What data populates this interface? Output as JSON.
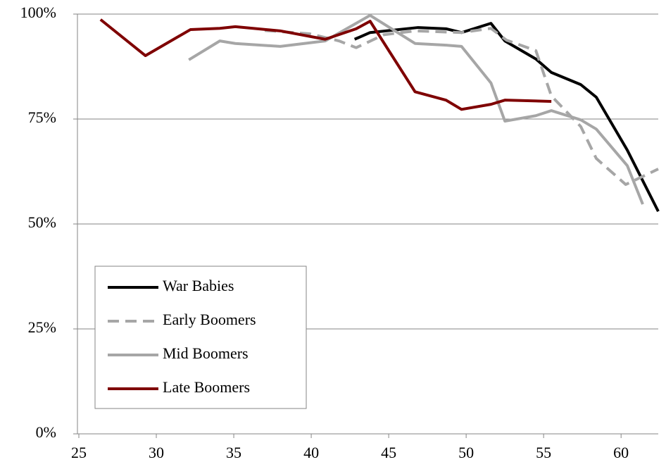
{
  "chart_data": {
    "type": "line",
    "xlim": [
      25,
      62.4
    ],
    "xticks": [
      25,
      30,
      35,
      40,
      45,
      50,
      55,
      60
    ],
    "ylim": [
      0,
      100
    ],
    "yticks": [
      {
        "value": 0,
        "label": "0%"
      },
      {
        "value": 25,
        "label": "25%"
      },
      {
        "value": 50,
        "label": "50%"
      },
      {
        "value": 75,
        "label": "75%"
      },
      {
        "value": 100,
        "label": "100%"
      }
    ],
    "grid": true,
    "legend": "lower left",
    "series": [
      {
        "name": "War Babies",
        "color": "#000000",
        "style": "solid",
        "x": [
          42.8,
          43.8,
          45.6,
          46.9,
          48.7,
          49.7,
          51.6,
          52.5,
          54.5,
          55.5,
          57.4,
          58.4,
          60.4,
          62.4
        ],
        "values": [
          94.0,
          95.6,
          96.3,
          96.8,
          96.5,
          95.6,
          97.8,
          93.6,
          89.3,
          86.1,
          83.2,
          80.2,
          67.6,
          53.0
        ]
      },
      {
        "name": "Early Boomers",
        "color": "#a6a6a6",
        "style": "dashed",
        "x": [
          37.0,
          39.9,
          41.8,
          42.9,
          44.7,
          46.7,
          49.7,
          51.6,
          52.6,
          54.5,
          55.5,
          57.4,
          58.4,
          60.3,
          62.4
        ],
        "values": [
          96.1,
          95.3,
          93.6,
          92.0,
          95.1,
          96.0,
          95.6,
          96.6,
          93.8,
          91.3,
          80.5,
          73.2,
          65.6,
          59.4,
          63.1
        ]
      },
      {
        "name": "Mid Boomers",
        "color": "#a6a6a6",
        "style": "solid",
        "x": [
          32.1,
          34.1,
          35.1,
          38.0,
          40.9,
          43.8,
          46.7,
          48.7,
          49.7,
          51.6,
          52.5,
          54.5,
          55.5,
          57.4,
          58.4,
          60.4,
          61.4
        ],
        "values": [
          89.1,
          93.6,
          93.0,
          92.3,
          93.6,
          99.7,
          93.0,
          92.6,
          92.3,
          83.6,
          74.5,
          75.8,
          77.0,
          74.8,
          72.6,
          63.9,
          54.7
        ]
      },
      {
        "name": "Late Boomers",
        "color": "#7f0000",
        "style": "solid",
        "x": [
          26.4,
          29.3,
          32.2,
          34.1,
          35.1,
          38.0,
          40.9,
          42.9,
          43.8,
          46.7,
          48.7,
          49.7,
          51.6,
          52.5,
          55.5
        ],
        "values": [
          98.7,
          90.1,
          96.3,
          96.6,
          97.0,
          96.0,
          94.0,
          96.5,
          98.3,
          81.5,
          79.5,
          77.3,
          78.5,
          79.5,
          79.2
        ]
      }
    ]
  }
}
